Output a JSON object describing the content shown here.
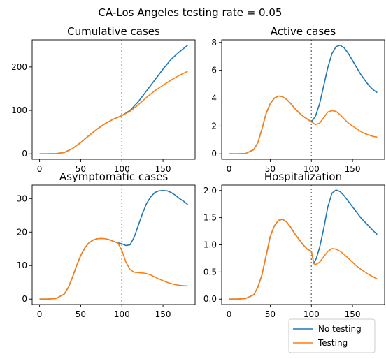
{
  "suptitle": "CA-Los Angeles testing rate = 0.05",
  "legend": {
    "placement": "bottom-right",
    "entries": [
      {
        "label": "No testing",
        "color": "#1f77b4"
      },
      {
        "label": "Testing",
        "color": "#ff7f0e"
      }
    ]
  },
  "intervention_day": 100,
  "chart_data": [
    {
      "type": "line",
      "title": "Cumulative cases",
      "xlim": [
        -9,
        189
      ],
      "ylim": [
        -12.5,
        262.5
      ],
      "xticks": [
        0,
        50,
        100,
        150
      ],
      "yticks": [
        0,
        100,
        200
      ],
      "ytick_labels": [
        "0",
        "100",
        "200"
      ],
      "x": [
        0,
        10,
        20,
        30,
        40,
        50,
        60,
        70,
        80,
        90,
        100,
        110,
        120,
        130,
        140,
        150,
        160,
        170,
        180
      ],
      "series": [
        {
          "name": "No testing",
          "color": "#1f77b4",
          "values": [
            0,
            0,
            0.5,
            3,
            12,
            26,
            42,
            57,
            70,
            80,
            88,
            100,
            120,
            145,
            170,
            195,
            218,
            235,
            250
          ]
        },
        {
          "name": "Testing",
          "color": "#ff7f0e",
          "values": [
            0,
            0,
            0.5,
            3,
            12,
            26,
            42,
            57,
            70,
            80,
            88,
            98,
            113,
            130,
            145,
            158,
            170,
            181,
            190
          ]
        }
      ]
    },
    {
      "type": "line",
      "title": "Active cases",
      "xlim": [
        -9,
        189
      ],
      "ylim": [
        -0.39,
        8.19
      ],
      "xticks": [
        0,
        50,
        100,
        150
      ],
      "yticks": [
        0,
        2,
        4,
        6,
        8
      ],
      "ytick_labels": [
        "0",
        "2",
        "4",
        "6",
        "8"
      ],
      "x": [
        0,
        10,
        20,
        30,
        35,
        40,
        45,
        50,
        55,
        60,
        65,
        70,
        75,
        80,
        85,
        90,
        95,
        100,
        105,
        110,
        115,
        120,
        125,
        130,
        135,
        140,
        145,
        150,
        155,
        160,
        165,
        170,
        175,
        180
      ],
      "series": [
        {
          "name": "No testing",
          "color": "#1f77b4",
          "values": [
            0,
            0,
            0.02,
            0.3,
            0.8,
            1.8,
            2.9,
            3.6,
            4.0,
            4.15,
            4.1,
            3.9,
            3.6,
            3.25,
            2.95,
            2.7,
            2.5,
            2.3,
            2.7,
            3.6,
            4.9,
            6.2,
            7.2,
            7.7,
            7.8,
            7.6,
            7.2,
            6.7,
            6.2,
            5.7,
            5.3,
            4.9,
            4.6,
            4.4
          ]
        },
        {
          "name": "Testing",
          "color": "#ff7f0e",
          "values": [
            0,
            0,
            0.02,
            0.3,
            0.8,
            1.8,
            2.9,
            3.6,
            4.0,
            4.15,
            4.1,
            3.9,
            3.6,
            3.25,
            2.95,
            2.7,
            2.5,
            2.3,
            2.1,
            2.2,
            2.6,
            3.0,
            3.1,
            3.05,
            2.8,
            2.5,
            2.2,
            2.0,
            1.8,
            1.6,
            1.45,
            1.35,
            1.25,
            1.2
          ]
        }
      ]
    },
    {
      "type": "line",
      "title": "Asymptomatic cases",
      "xlim": [
        -9,
        189
      ],
      "ylim": [
        -1.62,
        34.02
      ],
      "xticks": [
        0,
        50,
        100,
        150
      ],
      "yticks": [
        0,
        10,
        20,
        30
      ],
      "ytick_labels": [
        "0",
        "10",
        "20",
        "30"
      ],
      "x": [
        0,
        10,
        20,
        30,
        35,
        40,
        45,
        50,
        55,
        60,
        65,
        70,
        75,
        80,
        85,
        90,
        95,
        100,
        105,
        110,
        115,
        120,
        125,
        130,
        135,
        140,
        145,
        150,
        155,
        160,
        165,
        170,
        175,
        180
      ],
      "series": [
        {
          "name": "No testing",
          "color": "#1f77b4",
          "values": [
            0,
            0,
            0.2,
            1.5,
            3.5,
            6.5,
            10.0,
            13.0,
            15.3,
            16.8,
            17.6,
            18.0,
            18.1,
            18.0,
            17.7,
            17.2,
            16.8,
            16.5,
            16.0,
            16.2,
            18.5,
            22.0,
            25.5,
            28.5,
            30.5,
            31.8,
            32.3,
            32.4,
            32.3,
            31.8,
            31.0,
            30.0,
            29.2,
            28.2
          ]
        },
        {
          "name": "Testing",
          "color": "#ff7f0e",
          "values": [
            0,
            0,
            0.2,
            1.5,
            3.5,
            6.5,
            10.0,
            13.0,
            15.3,
            16.8,
            17.6,
            18.0,
            18.1,
            18.0,
            17.7,
            17.2,
            16.8,
            14.5,
            11.0,
            8.8,
            8.0,
            7.9,
            7.8,
            7.6,
            7.2,
            6.6,
            6.0,
            5.5,
            5.0,
            4.6,
            4.3,
            4.1,
            4.0,
            3.9
          ]
        }
      ]
    },
    {
      "type": "line",
      "title": "Hospitalization",
      "xlim": [
        -9,
        189
      ],
      "ylim": [
        -0.1,
        2.1
      ],
      "xticks": [
        0,
        50,
        100,
        150
      ],
      "yticks": [
        0,
        0.5,
        1.0,
        1.5,
        2.0
      ],
      "ytick_labels": [
        "0.0",
        "0.5",
        "1.0",
        "1.5",
        "2.0"
      ],
      "x": [
        0,
        10,
        20,
        30,
        35,
        40,
        45,
        50,
        55,
        60,
        65,
        70,
        75,
        80,
        85,
        90,
        95,
        100,
        103,
        106,
        110,
        115,
        120,
        125,
        130,
        135,
        140,
        145,
        150,
        155,
        160,
        165,
        170,
        175,
        180
      ],
      "series": [
        {
          "name": "No testing",
          "color": "#1f77b4",
          "values": [
            0,
            0,
            0.01,
            0.08,
            0.22,
            0.45,
            0.8,
            1.15,
            1.35,
            1.45,
            1.47,
            1.42,
            1.32,
            1.2,
            1.1,
            1.0,
            0.92,
            0.88,
            0.66,
            0.75,
            0.95,
            1.3,
            1.7,
            1.95,
            2.01,
            1.98,
            1.9,
            1.8,
            1.7,
            1.6,
            1.5,
            1.42,
            1.34,
            1.26,
            1.19
          ]
        },
        {
          "name": "Testing",
          "color": "#ff7f0e",
          "values": [
            0,
            0,
            0.01,
            0.08,
            0.22,
            0.45,
            0.8,
            1.15,
            1.35,
            1.45,
            1.47,
            1.42,
            1.32,
            1.2,
            1.1,
            1.0,
            0.92,
            0.88,
            0.65,
            0.64,
            0.68,
            0.78,
            0.88,
            0.93,
            0.92,
            0.88,
            0.82,
            0.75,
            0.68,
            0.61,
            0.55,
            0.5,
            0.45,
            0.41,
            0.37
          ]
        }
      ]
    }
  ]
}
